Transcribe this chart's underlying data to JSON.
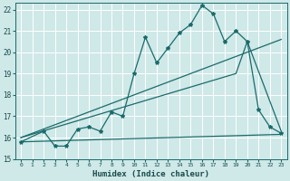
{
  "xlabel": "Humidex (Indice chaleur)",
  "bg_color": "#cfe8e8",
  "grid_color": "#ffffff",
  "line_color": "#1a6b6b",
  "xlim": [
    -0.5,
    23.5
  ],
  "ylim": [
    15,
    22.3
  ],
  "yticks": [
    15,
    16,
    17,
    18,
    19,
    20,
    21,
    22
  ],
  "xticks": [
    0,
    1,
    2,
    3,
    4,
    5,
    6,
    7,
    8,
    9,
    10,
    11,
    12,
    13,
    14,
    15,
    16,
    17,
    18,
    19,
    20,
    21,
    22,
    23
  ],
  "series1_x": [
    0,
    2,
    3,
    4,
    5,
    6,
    7,
    8,
    9,
    10,
    11,
    12,
    13,
    14,
    15,
    16,
    17,
    18,
    19,
    20,
    21,
    22,
    23
  ],
  "series1_y": [
    15.8,
    16.3,
    15.6,
    15.6,
    16.4,
    16.5,
    16.3,
    17.2,
    17.0,
    19.0,
    20.7,
    19.5,
    20.2,
    20.9,
    21.3,
    22.2,
    21.8,
    20.5,
    21.0,
    20.5,
    17.3,
    16.5,
    16.2
  ],
  "series2_x": [
    0,
    19,
    20,
    23
  ],
  "series2_y": [
    16.0,
    19.0,
    20.5,
    16.3
  ],
  "series3_x": [
    0,
    23
  ],
  "series3_y": [
    15.8,
    16.15
  ],
  "series4_x": [
    0,
    23
  ],
  "series4_y": [
    16.0,
    20.6
  ]
}
